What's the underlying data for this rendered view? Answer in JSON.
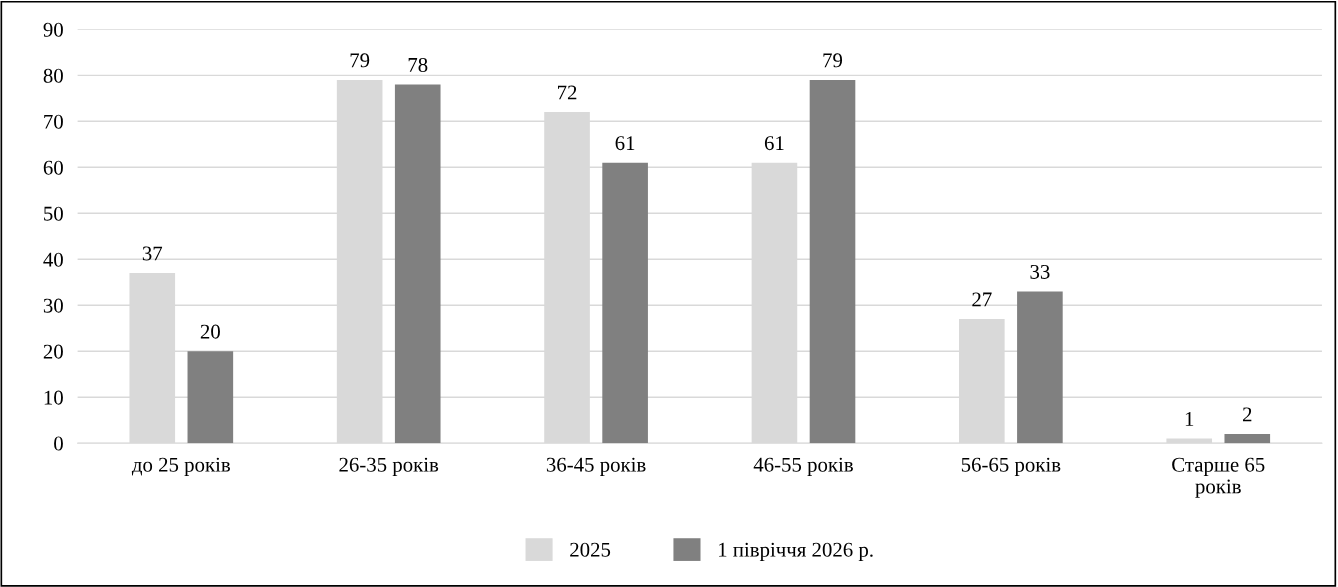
{
  "chart_data": {
    "type": "bar",
    "categories": [
      "до 25 років",
      "26-35 років",
      "36-45 років",
      "46-55 років",
      "56-65 років",
      "Старше 65\nроків"
    ],
    "series": [
      {
        "name": "2025",
        "color": "#d9d9d9",
        "values": [
          37,
          79,
          72,
          61,
          27,
          1
        ]
      },
      {
        "name": "1 півріччя 2026 р.",
        "color": "#808080",
        "values": [
          20,
          78,
          61,
          79,
          33,
          2
        ]
      }
    ],
    "ylim": [
      0,
      90
    ],
    "yticks": [
      0,
      10,
      20,
      30,
      40,
      50,
      60,
      70,
      80,
      90
    ],
    "grid": "y",
    "legend": "bottom",
    "data_labels": true
  }
}
